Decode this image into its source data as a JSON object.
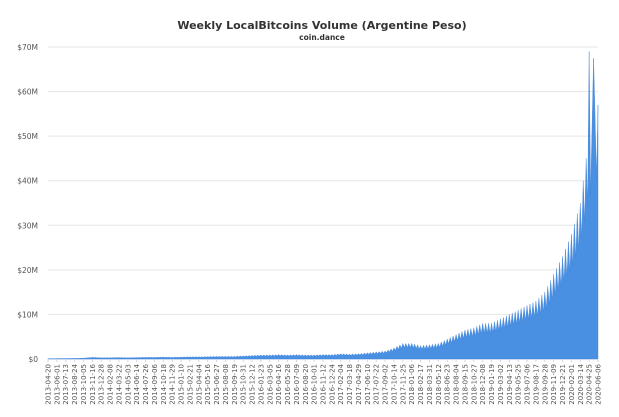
{
  "chart_data": {
    "type": "area",
    "title": "Weekly LocalBitcoins Volume (Argentine Peso)",
    "subtitle": "coin.dance",
    "xlabel": "",
    "ylabel": "",
    "ylim": [
      0,
      70000000
    ],
    "y_ticks": [
      "$0",
      "$10M",
      "$20M",
      "$30M",
      "$40M",
      "$50M",
      "$60M",
      "$70M"
    ],
    "grid": true,
    "legend": "none",
    "color": "#4a90e2",
    "x": [
      "2013-04-20",
      "2013-06-01",
      "2013-07-13",
      "2013-08-24",
      "2013-10-05",
      "2013-11-16",
      "2013-12-28",
      "2014-02-08",
      "2014-03-22",
      "2014-05-03",
      "2014-06-14",
      "2014-07-26",
      "2014-09-06",
      "2014-10-18",
      "2014-11-29",
      "2015-01-10",
      "2015-02-21",
      "2015-04-04",
      "2015-05-16",
      "2015-06-27",
      "2015-08-08",
      "2015-09-19",
      "2015-10-31",
      "2015-12-12",
      "2016-01-23",
      "2016-03-05",
      "2016-04-16",
      "2016-05-28",
      "2016-07-09",
      "2016-08-20",
      "2016-10-01",
      "2016-11-12",
      "2016-12-24",
      "2017-02-04",
      "2017-03-18",
      "2017-04-29",
      "2017-06-10",
      "2017-07-22",
      "2017-09-02",
      "2017-10-14",
      "2017-11-25",
      "2018-01-06",
      "2018-02-17",
      "2018-03-31",
      "2018-05-12",
      "2018-06-23",
      "2018-08-04",
      "2018-09-15",
      "2018-10-27",
      "2018-12-08",
      "2019-01-19",
      "2019-03-02",
      "2019-04-13",
      "2019-05-25",
      "2019-07-06",
      "2019-08-17",
      "2019-09-28",
      "2019-11-09",
      "2019-12-21",
      "2020-02-01",
      "2020-03-14",
      "2020-04-25",
      "2020-06-06"
    ],
    "values": [
      0.08,
      0.1,
      0.12,
      0.15,
      0.2,
      0.4,
      0.3,
      0.3,
      0.35,
      0.3,
      0.35,
      0.4,
      0.4,
      0.45,
      0.4,
      0.45,
      0.5,
      0.5,
      0.55,
      0.6,
      0.6,
      0.6,
      0.7,
      0.8,
      0.9,
      0.9,
      1.0,
      0.9,
      1.0,
      0.9,
      0.9,
      1.0,
      1.0,
      1.2,
      1.1,
      1.2,
      1.4,
      1.6,
      1.8,
      2.5,
      3.5,
      3.5,
      3.0,
      3.2,
      3.5,
      4.5,
      5.5,
      6.5,
      7.0,
      8.0,
      8.0,
      9.0,
      10.0,
      11.0,
      12.0,
      13.0,
      15.0,
      19.0,
      23.0,
      28.0,
      35.0,
      50.0,
      57.0
    ],
    "extra_peaks": {
      "2020-04-25": 69.0,
      "2020-05-16": 67.5
    },
    "value_unit": "millions"
  }
}
